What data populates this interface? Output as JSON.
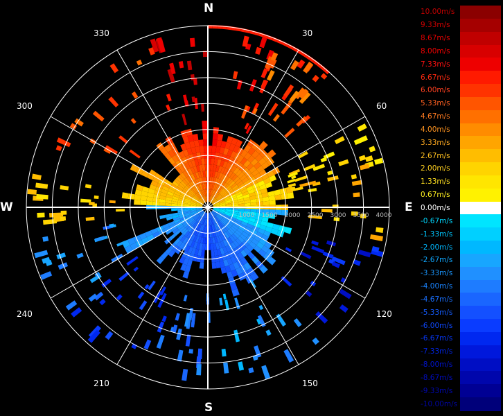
{
  "chart_data": {
    "type": "polar-radar",
    "cardinals": {
      "north": "N",
      "east": "E",
      "south": "S",
      "west": "W"
    },
    "bearing_labels": [
      "30",
      "60",
      "120",
      "150",
      "210",
      "240",
      "300",
      "330"
    ],
    "range_labels": [
      "1000",
      "1500",
      "2000",
      "2500",
      "3000",
      "3500",
      "4000"
    ],
    "grid": true,
    "ring_count": 7,
    "spoke_interval_deg": 30,
    "legend": {
      "position": "right",
      "items": [
        {
          "label": "10.00m/s",
          "color": "#8b0000",
          "text": "#c00000"
        },
        {
          "label": "9.33m/s",
          "color": "#a50000",
          "text": "#d00000"
        },
        {
          "label": "8.67m/s",
          "color": "#c00000",
          "text": "#e00000"
        },
        {
          "label": "8.00m/s",
          "color": "#d80000",
          "text": "#ee0000"
        },
        {
          "label": "7.33m/s",
          "color": "#ee0000",
          "text": "#ff1010"
        },
        {
          "label": "6.67m/s",
          "color": "#ff1a00",
          "text": "#ff2a10"
        },
        {
          "label": "6.00m/s",
          "color": "#ff3300",
          "text": "#ff4020"
        },
        {
          "label": "5.33m/s",
          "color": "#ff5500",
          "text": "#ff6020"
        },
        {
          "label": "4.67m/s",
          "color": "#ff7000",
          "text": "#ff7a20"
        },
        {
          "label": "4.00m/s",
          "color": "#ff8c00",
          "text": "#ff9420"
        },
        {
          "label": "3.33m/s",
          "color": "#ffa500",
          "text": "#ffaa20"
        },
        {
          "label": "2.67m/s",
          "color": "#ffbd00",
          "text": "#ffc020"
        },
        {
          "label": "2.00m/s",
          "color": "#ffd400",
          "text": "#ffd020"
        },
        {
          "label": "1.33m/s",
          "color": "#ffe600",
          "text": "#ffe020"
        },
        {
          "label": "0.67m/s",
          "color": "#fff200",
          "text": "#fff020"
        },
        {
          "label": "0.00m/s",
          "color": "#ffffff",
          "text": "#ffffff"
        },
        {
          "label": "-0.67m/s",
          "color": "#00e5ff",
          "text": "#00d8ff"
        },
        {
          "label": "-1.33m/s",
          "color": "#00d0ff",
          "text": "#00c8ff"
        },
        {
          "label": "-2.00m/s",
          "color": "#00b8ff",
          "text": "#00b8ff"
        },
        {
          "label": "-2.67m/s",
          "color": "#18a6ff",
          "text": "#10a8ff"
        },
        {
          "label": "-3.33m/s",
          "color": "#2090ff",
          "text": "#1a96ff"
        },
        {
          "label": "-4.00m/s",
          "color": "#1e7cff",
          "text": "#1a84ff"
        },
        {
          "label": "-4.67m/s",
          "color": "#1a66ff",
          "text": "#1a70ff"
        },
        {
          "label": "-5.33m/s",
          "color": "#1450ff",
          "text": "#145cff"
        },
        {
          "label": "-6.00m/s",
          "color": "#0a3cff",
          "text": "#0e48ff"
        },
        {
          "label": "-6.67m/s",
          "color": "#0028f0",
          "text": "#0636f0"
        },
        {
          "label": "-7.33m/s",
          "color": "#0018dc",
          "text": "#0024e0"
        },
        {
          "label": "-8.00m/s",
          "color": "#000ec4",
          "text": "#0014d0"
        },
        {
          "label": "-8.67m/s",
          "color": "#0006ac",
          "text": "#000cc0"
        },
        {
          "label": "-9.33m/s",
          "color": "#000094",
          "text": "#0008b0"
        },
        {
          "label": "-10.00m/s",
          "color": "#00007a",
          "text": "#0006a0"
        }
      ]
    }
  }
}
